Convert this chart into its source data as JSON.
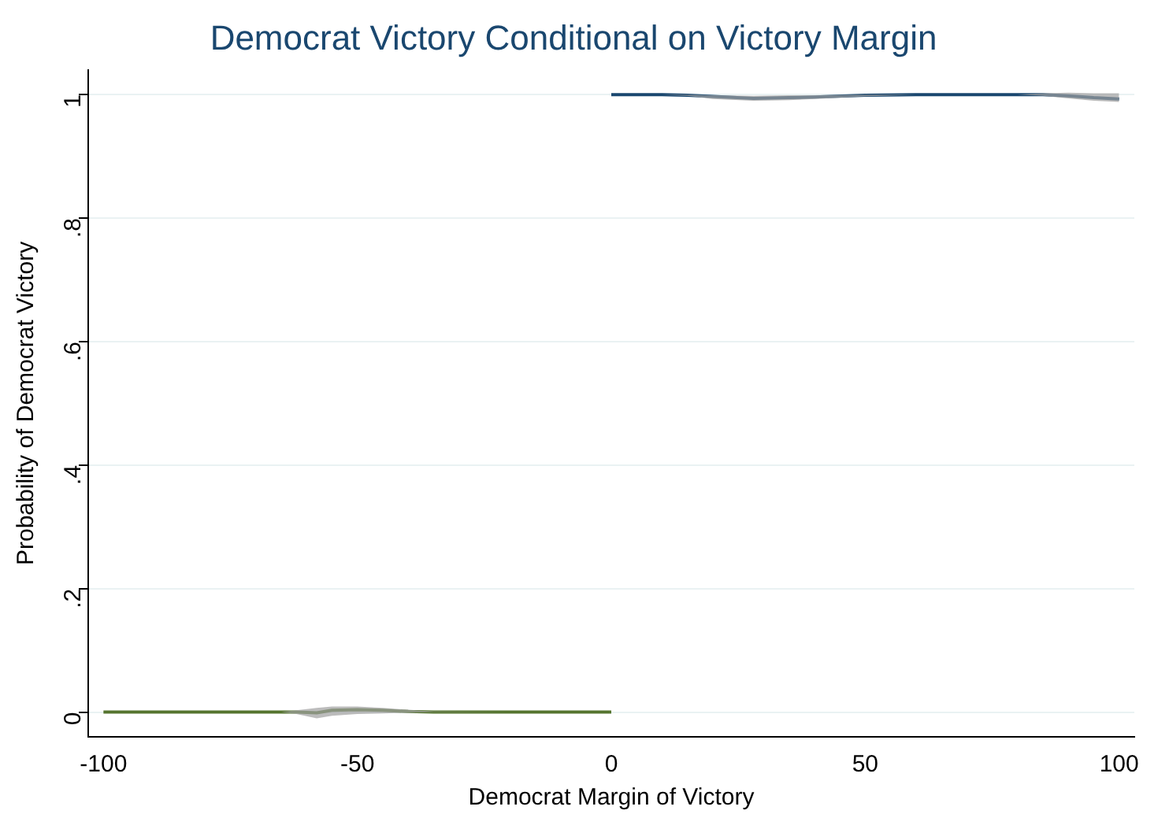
{
  "chart_data": {
    "type": "line",
    "title": "Democrat Victory Conditional on Victory Margin",
    "xlabel": "Democrat Margin of Victory",
    "ylabel": "Probability of Democrat Victory",
    "xlim": [
      -103,
      103
    ],
    "xticks": [
      -100,
      -50,
      0,
      50,
      100
    ],
    "ylim": [
      -0.04,
      1.04
    ],
    "yticks": [
      {
        "value": 0,
        "label": "0"
      },
      {
        "value": 0.2,
        "label": ".2"
      },
      {
        "value": 0.4,
        "label": ".4"
      },
      {
        "value": 0.6,
        "label": ".6"
      },
      {
        "value": 0.8,
        "label": ".8"
      },
      {
        "value": 1,
        "label": "1"
      }
    ],
    "grid": "y",
    "legend": false,
    "marker": "none",
    "line_style": "solid",
    "series": [
      {
        "color": "#55752f",
        "x": [
          -100,
          -80,
          -65,
          -62,
          -58,
          -55,
          -50,
          -45,
          -40,
          -35,
          -20,
          0
        ],
        "values": [
          0,
          0,
          0,
          0,
          -0.001,
          0.003,
          0.004,
          0.003,
          0.001,
          0,
          0,
          0
        ],
        "lower": [
          0,
          0,
          0,
          -0.003,
          -0.01,
          -0.006,
          -0.003,
          -0.002,
          -0.001,
          0,
          0,
          0
        ],
        "upper": [
          0,
          0,
          0,
          0.003,
          0.007,
          0.009,
          0.009,
          0.007,
          0.004,
          0.001,
          0,
          0
        ]
      },
      {
        "color": "#1a476f",
        "x": [
          0,
          10,
          15,
          20,
          28,
          35,
          40,
          50,
          60,
          80,
          85,
          90,
          95,
          100
        ],
        "values": [
          1,
          1,
          0.999,
          0.997,
          0.994,
          0.995,
          0.996,
          0.999,
          1,
          1,
          1,
          0.998,
          0.995,
          0.993
        ],
        "lower": [
          1,
          1,
          0.998,
          0.993,
          0.99,
          0.991,
          0.993,
          0.997,
          1,
          1,
          0.998,
          0.994,
          0.99,
          0.988
        ],
        "upper": [
          1,
          1,
          1,
          0.999,
          0.998,
          0.999,
          0.999,
          1,
          1,
          1,
          1.002,
          1.003,
          1.002,
          1.002
        ]
      }
    ]
  }
}
